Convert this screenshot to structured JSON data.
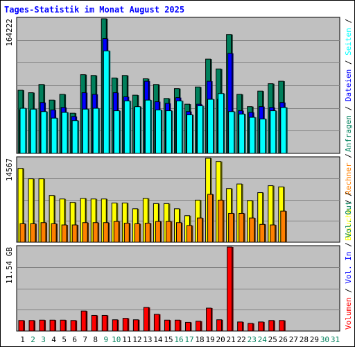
{
  "title": "Tages-Statistik im Monat August 2025",
  "colors": {
    "background": "#c0c0c0",
    "anfragen": "#00805c",
    "dateien": "#0000ff",
    "seiten": "#00ffff",
    "besuche": "#ffff00",
    "rechner": "#ff8000",
    "kbytes": "#ff0000",
    "title": "#0000ff",
    "weekend": "#00805c"
  },
  "chart_data": [
    {
      "type": "bar",
      "panel": "hits",
      "y_max_label": "164222",
      "ylim": [
        0,
        164222
      ],
      "categories": [
        "1",
        "2",
        "3",
        "4",
        "5",
        "6",
        "7",
        "8",
        "9",
        "10",
        "11",
        "12",
        "13",
        "14",
        "15",
        "16",
        "17",
        "18",
        "19",
        "20",
        "21",
        "22",
        "23",
        "24",
        "25",
        "26",
        "27",
        "28",
        "29",
        "30",
        "31"
      ],
      "weekend_days": [
        "2",
        "3",
        "9",
        "10",
        "16",
        "17",
        "23",
        "24",
        "30",
        "31"
      ],
      "right_labels": [
        {
          "text": "Anfragen",
          "color": "#00805c"
        },
        {
          "text": " / ",
          "color": "#000000"
        },
        {
          "text": "Dateien",
          "color": "#0000ff"
        },
        {
          "text": " / ",
          "color": "#000000"
        },
        {
          "text": "Seiten",
          "color": "#00ffff"
        },
        {
          "text": " / ",
          "color": "#000000"
        }
      ],
      "series": [
        {
          "name": "Anfragen",
          "values": [
            77000,
            74000,
            84000,
            65000,
            72000,
            49000,
            96000,
            95000,
            164222,
            92000,
            95000,
            71000,
            91000,
            84000,
            67000,
            79000,
            60000,
            81000,
            115000,
            103000,
            145000,
            72000,
            57000,
            76000,
            85000,
            88000,
            0,
            0,
            0,
            0,
            0
          ]
        },
        {
          "name": "Dateien",
          "values": [
            53000,
            52000,
            62000,
            53000,
            56000,
            45000,
            74000,
            72000,
            140000,
            74000,
            69000,
            56000,
            88000,
            63000,
            61000,
            68000,
            51000,
            60000,
            88000,
            66000,
            122000,
            52000,
            50000,
            57000,
            56000,
            62000,
            0,
            0,
            0,
            0,
            0
          ]
        },
        {
          "name": "Seiten",
          "values": [
            55000,
            54000,
            51000,
            43000,
            50000,
            40000,
            54000,
            55000,
            125000,
            52000,
            64000,
            57000,
            65000,
            53000,
            52000,
            64000,
            47000,
            58000,
            66000,
            73000,
            51000,
            48000,
            44000,
            42000,
            52000,
            56000,
            0,
            0,
            0,
            0,
            0
          ]
        }
      ]
    },
    {
      "type": "bar",
      "panel": "visits",
      "y_max_label": "14567",
      "ylim": [
        0,
        14567
      ],
      "right_labels": [
        {
          "text": "Besuche",
          "color": "#ffff00"
        },
        {
          "text": " / ",
          "color": "#000000"
        },
        {
          "text": "Rechner",
          "color": "#ff8000"
        },
        {
          "text": " / ",
          "color": "#000000"
        }
      ],
      "series": [
        {
          "name": "Besuche",
          "values": [
            12800,
            11000,
            11000,
            8100,
            7500,
            6900,
            7600,
            7500,
            7500,
            6800,
            6800,
            5800,
            7600,
            6700,
            6700,
            5800,
            4600,
            7300,
            14567,
            14000,
            9300,
            10100,
            7200,
            8600,
            9800,
            9600,
            0,
            0,
            0,
            0,
            0
          ]
        },
        {
          "name": "Rechner",
          "values": [
            3200,
            3200,
            3400,
            3200,
            3000,
            3000,
            3400,
            3400,
            3400,
            3600,
            3300,
            3200,
            3300,
            3600,
            3600,
            3400,
            2900,
            4200,
            8300,
            7300,
            5000,
            5000,
            4200,
            3100,
            3000,
            5400,
            0,
            0,
            0,
            0,
            0
          ]
        }
      ]
    },
    {
      "type": "bar",
      "panel": "volume",
      "y_max_label": "11.54 GB",
      "ylim": [
        0,
        11.54
      ],
      "right_labels": [
        {
          "text": "Volumen",
          "color": "#ff0000"
        },
        {
          "text": " / ",
          "color": "#000000"
        },
        {
          "text": "Vol. In",
          "color": "#0000ff"
        },
        {
          "text": " / ",
          "color": "#000000"
        },
        {
          "text": "Vol. Out",
          "color": "#00805c"
        },
        {
          "text": " / ",
          "color": "#000000"
        }
      ],
      "series": [
        {
          "name": "Volumen",
          "values": [
            1.45,
            1.45,
            1.5,
            1.5,
            1.5,
            1.45,
            2.75,
            2.15,
            2.15,
            1.55,
            1.75,
            1.55,
            3.25,
            2.3,
            1.5,
            1.5,
            1.2,
            1.35,
            3.15,
            1.55,
            11.54,
            1.25,
            1.05,
            1.25,
            1.45,
            1.45,
            0,
            0,
            0,
            0,
            0
          ]
        }
      ]
    }
  ]
}
